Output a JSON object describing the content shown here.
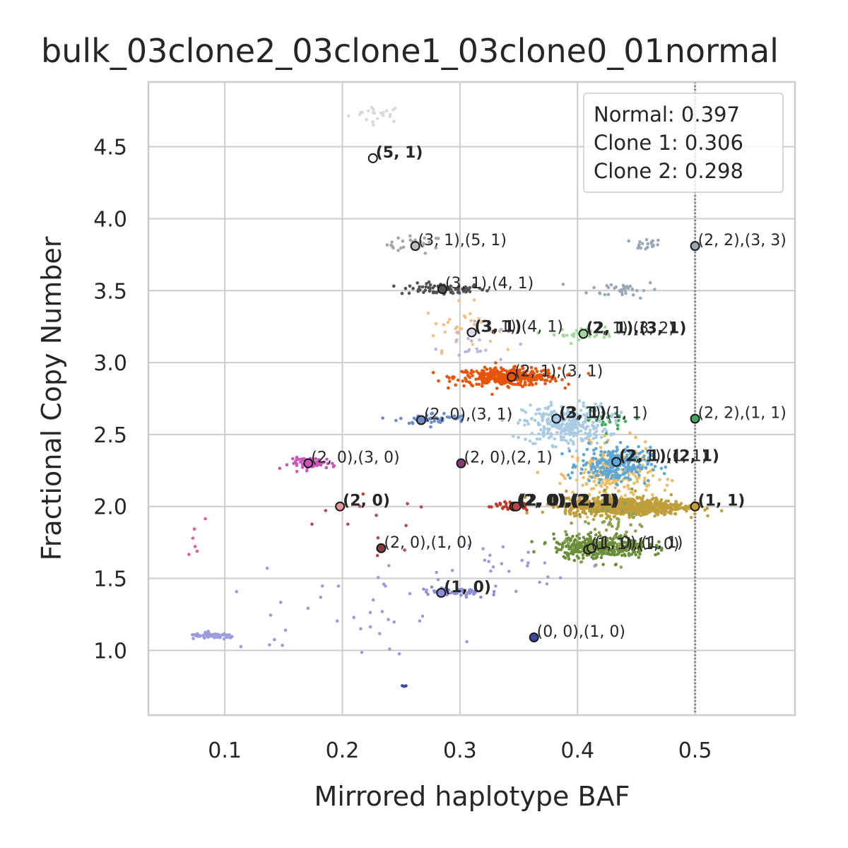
{
  "chart_data": {
    "type": "scatter",
    "title": "bulk_03clone2_03clone1_03clone0_01normal",
    "xlabel": "Mirrored haplotype BAF",
    "ylabel": "Fractional Copy Number",
    "xlim": [
      0.035,
      0.585
    ],
    "ylim": [
      0.55,
      4.95
    ],
    "xticks": [
      "0.1",
      "0.2",
      "0.3",
      "0.4",
      "0.5"
    ],
    "yticks": [
      "1.0",
      "1.5",
      "2.0",
      "2.5",
      "3.0",
      "3.5",
      "4.0",
      "4.5"
    ],
    "grid": true,
    "reference_line": {
      "x": 0.5,
      "style": "dotted"
    },
    "legend": {
      "placement": "top-right",
      "entries": [
        "Normal: 0.397",
        "Clone 1: 0.306",
        "Clone 2: 0.298"
      ]
    },
    "clusters": [
      {
        "cx": 0.23,
        "cy": 4.73,
        "sx": 0.012,
        "sy": 0.03,
        "n": 22,
        "color": "#d9d9d9"
      },
      {
        "cx": 0.226,
        "cy": 4.42,
        "sx": 0.002,
        "sy": 0.02,
        "n": 2,
        "color": "#9e9e9e"
      },
      {
        "cx": 0.262,
        "cy": 3.82,
        "sx": 0.012,
        "sy": 0.03,
        "n": 25,
        "color": "#a6a6a6"
      },
      {
        "cx": 0.458,
        "cy": 3.82,
        "sx": 0.007,
        "sy": 0.02,
        "n": 18,
        "color": "#9aa7b7"
      },
      {
        "cx": 0.285,
        "cy": 3.51,
        "sx": 0.018,
        "sy": 0.02,
        "n": 80,
        "color": "#525252"
      },
      {
        "cx": 0.44,
        "cy": 3.51,
        "sx": 0.015,
        "sy": 0.03,
        "n": 35,
        "color": "#9aa7b7"
      },
      {
        "cx": 0.3,
        "cy": 3.25,
        "sx": 0.015,
        "sy": 0.08,
        "n": 30,
        "color": "#f2c089"
      },
      {
        "cx": 0.31,
        "cy": 3.15,
        "sx": 0.015,
        "sy": 0.08,
        "n": 25,
        "color": "#bcb5dc"
      },
      {
        "cx": 0.41,
        "cy": 3.2,
        "sx": 0.015,
        "sy": 0.02,
        "n": 30,
        "color": "#a1d99b"
      },
      {
        "cx": 0.34,
        "cy": 2.9,
        "sx": 0.022,
        "sy": 0.03,
        "n": 380,
        "color": "#e6550d"
      },
      {
        "cx": 0.278,
        "cy": 2.61,
        "sx": 0.015,
        "sy": 0.02,
        "n": 50,
        "color": "#6b8cc7"
      },
      {
        "cx": 0.39,
        "cy": 2.57,
        "sx": 0.018,
        "sy": 0.07,
        "n": 300,
        "color": "#a9cce3"
      },
      {
        "cx": 0.43,
        "cy": 2.6,
        "sx": 0.012,
        "sy": 0.03,
        "n": 20,
        "color": "#41ab5d"
      },
      {
        "cx": 0.175,
        "cy": 2.3,
        "sx": 0.01,
        "sy": 0.02,
        "n": 60,
        "color": "#cc57b8"
      },
      {
        "cx": 0.43,
        "cy": 2.22,
        "sx": 0.017,
        "sy": 0.1,
        "n": 250,
        "color": "#e8be68"
      },
      {
        "cx": 0.432,
        "cy": 2.29,
        "sx": 0.015,
        "sy": 0.06,
        "n": 250,
        "color": "#5fa8d6"
      },
      {
        "cx": 0.44,
        "cy": 2.0,
        "sx": 0.025,
        "sy": 0.03,
        "n": 800,
        "color": "#bf9e3b"
      },
      {
        "cx": 0.34,
        "cy": 2.0,
        "sx": 0.01,
        "sy": 0.015,
        "n": 30,
        "color": "#c0392b"
      },
      {
        "cx": 0.24,
        "cy": 1.95,
        "sx": 0.03,
        "sy": 0.15,
        "n": 12,
        "color": "#b8474f"
      },
      {
        "cx": 0.42,
        "cy": 1.72,
        "sx": 0.02,
        "sy": 0.04,
        "n": 350,
        "color": "#6b8e3a"
      },
      {
        "cx": 0.43,
        "cy": 1.85,
        "sx": 0.02,
        "sy": 0.1,
        "n": 60,
        "color": "#8ca252"
      },
      {
        "cx": 0.09,
        "cy": 1.1,
        "sx": 0.01,
        "sy": 0.01,
        "n": 60,
        "color": "#9d9be0"
      },
      {
        "cx": 0.295,
        "cy": 1.4,
        "sx": 0.015,
        "sy": 0.02,
        "n": 50,
        "color": "#8d8ed8"
      },
      {
        "cx": 0.2,
        "cy": 1.25,
        "sx": 0.06,
        "sy": 0.15,
        "n": 35,
        "color": "#9d9be0"
      },
      {
        "cx": 0.34,
        "cy": 1.62,
        "sx": 0.04,
        "sy": 0.1,
        "n": 25,
        "color": "#9d9be0"
      },
      {
        "cx": 0.072,
        "cy": 1.95,
        "sx": 0.01,
        "sy": 0.2,
        "n": 6,
        "color": "#e05fa0"
      },
      {
        "cx": 0.255,
        "cy": 0.77,
        "sx": 0.003,
        "sy": 0.02,
        "n": 3,
        "color": "#3b4a9c"
      }
    ],
    "centers": [
      {
        "x": 0.226,
        "y": 4.42,
        "fill": "#ffffff"
      },
      {
        "x": 0.262,
        "y": 3.81,
        "fill": "#bdbdbd"
      },
      {
        "x": 0.5,
        "y": 3.81,
        "fill": "#9aa7b7"
      },
      {
        "x": 0.285,
        "y": 3.51,
        "fill": "#525252"
      },
      {
        "x": 0.31,
        "y": 3.21,
        "fill": "#dadaeb"
      },
      {
        "x": 0.405,
        "y": 3.2,
        "fill": "#a1d99b"
      },
      {
        "x": 0.344,
        "y": 2.9,
        "fill": "#e6550d"
      },
      {
        "x": 0.267,
        "y": 2.6,
        "fill": "#6b8cc7"
      },
      {
        "x": 0.382,
        "y": 2.61,
        "fill": "#a9cce3"
      },
      {
        "x": 0.5,
        "y": 2.61,
        "fill": "#41ab5d"
      },
      {
        "x": 0.171,
        "y": 2.3,
        "fill": "#cc57b8"
      },
      {
        "x": 0.301,
        "y": 2.3,
        "fill": "#843c76"
      },
      {
        "x": 0.433,
        "y": 2.31,
        "fill": "#5fa8d6"
      },
      {
        "x": 0.198,
        "y": 2.0,
        "fill": "#e7969c"
      },
      {
        "x": 0.346,
        "y": 2.0,
        "fill": "#c0392b"
      },
      {
        "x": 0.348,
        "y": 2.0,
        "fill": "#b8474f"
      },
      {
        "x": 0.5,
        "y": 2.0,
        "fill": "#bf9e3b"
      },
      {
        "x": 0.233,
        "y": 1.71,
        "fill": "#843c39"
      },
      {
        "x": 0.409,
        "y": 1.7,
        "fill": "#6b8e3a"
      },
      {
        "x": 0.412,
        "y": 1.71,
        "fill": "#8ca252"
      },
      {
        "x": 0.284,
        "y": 1.4,
        "fill": "#8d8ed8"
      },
      {
        "x": 0.363,
        "y": 1.09,
        "fill": "#3b4a9c"
      }
    ],
    "annotations": [
      {
        "x": 0.226,
        "y": 4.42,
        "text": "(5, 1)",
        "bold": true
      },
      {
        "x": 0.262,
        "y": 3.81,
        "text": "(3, 1),(5, 1)",
        "bold": false
      },
      {
        "x": 0.5,
        "y": 3.81,
        "text": "(2, 2),(3, 3)",
        "bold": false
      },
      {
        "x": 0.285,
        "y": 3.51,
        "text": "(3, 1),(4, 1)",
        "bold": false
      },
      {
        "x": 0.31,
        "y": 3.21,
        "text": "(3, 1),(4, 1)",
        "bold": false
      },
      {
        "x": 0.31,
        "y": 3.21,
        "text": "(3, 1)",
        "bold": true
      },
      {
        "x": 0.405,
        "y": 3.2,
        "text": "(2, 1),(3, 2)",
        "bold": false
      },
      {
        "x": 0.405,
        "y": 3.2,
        "text": "(2, 1),(3, 1)",
        "bold": true
      },
      {
        "x": 0.344,
        "y": 2.9,
        "text": "(2, 1),(3, 1)",
        "bold": false
      },
      {
        "x": 0.267,
        "y": 2.6,
        "text": "(2, 0),(3, 1)",
        "bold": false
      },
      {
        "x": 0.382,
        "y": 2.61,
        "text": "(2, 1),(1, 1)",
        "bold": false
      },
      {
        "x": 0.382,
        "y": 2.61,
        "text": "(3, 1)",
        "bold": true
      },
      {
        "x": 0.5,
        "y": 2.61,
        "text": "(2, 2),(1, 1)",
        "bold": false
      },
      {
        "x": 0.171,
        "y": 2.3,
        "text": "(2, 0),(3, 0)",
        "bold": false
      },
      {
        "x": 0.301,
        "y": 2.3,
        "text": "(2, 0),(2, 1)",
        "bold": false
      },
      {
        "x": 0.433,
        "y": 2.31,
        "text": "(2, 1),(1, 1)",
        "bold": false
      },
      {
        "x": 0.433,
        "y": 2.31,
        "text": "(2, 1),(2, 1)",
        "bold": true
      },
      {
        "x": 0.198,
        "y": 2.0,
        "text": "(2, 0)",
        "bold": true
      },
      {
        "x": 0.346,
        "y": 2.0,
        "text": "(2, 0),(2, 1)",
        "bold": true
      },
      {
        "x": 0.348,
        "y": 2.0,
        "text": "(2, 0),(2, 1)",
        "bold": true
      },
      {
        "x": 0.5,
        "y": 2.0,
        "text": "(1, 1)",
        "bold": true
      },
      {
        "x": 0.233,
        "y": 1.71,
        "text": "(2, 0),(1, 0)",
        "bold": false
      },
      {
        "x": 0.409,
        "y": 1.7,
        "text": "(1, 1),(1, 0)",
        "bold": false
      },
      {
        "x": 0.412,
        "y": 1.71,
        "text": "(1, 0),(1, 1)",
        "bold": false
      },
      {
        "x": 0.284,
        "y": 1.4,
        "text": "(1, 0)",
        "bold": true
      },
      {
        "x": 0.363,
        "y": 1.09,
        "text": "(0, 0),(1, 0)",
        "bold": false
      }
    ]
  }
}
